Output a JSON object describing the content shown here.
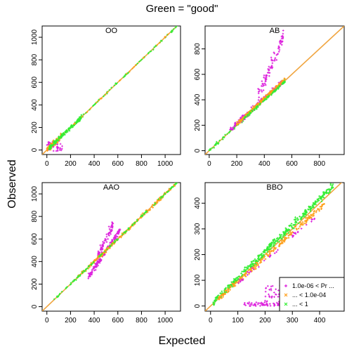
{
  "title": "Green = \"good\"",
  "xlabel": "Expected",
  "ylabel": "Observed",
  "colors": {
    "magenta": "#dd22dd",
    "orange": "#ff9f1a",
    "green": "#33ee33",
    "diagonal": "#f0a540"
  },
  "legend": {
    "placement": "bottom-right of BBO panel",
    "entries": [
      {
        "label": "1.0e-06 < Pr ...",
        "color": "#dd22dd",
        "marker": "+"
      },
      {
        "label": "... < 1.0e-04",
        "color": "#ff9f1a",
        "marker": "x"
      },
      {
        "label": "... < 1",
        "color": "#33ee33",
        "marker": "x"
      }
    ]
  },
  "chart_data": [
    {
      "type": "scatter",
      "name": "OO",
      "title": "OO",
      "xlim": [
        -40,
        1130
      ],
      "ylim": [
        -40,
        1100
      ],
      "xticks": [
        0,
        200,
        400,
        600,
        800,
        1000
      ],
      "yticks": [
        0,
        200,
        400,
        600,
        800,
        1000
      ],
      "diagonal": true,
      "clusters": [
        {
          "color": "magenta",
          "n": 60,
          "shape": "blob",
          "x": [
            0,
            130
          ],
          "y": [
            -10,
            80
          ]
        },
        {
          "color": "orange",
          "n": 90,
          "shape": "diag",
          "x": [
            0,
            120
          ],
          "noise": 25
        },
        {
          "color": "green",
          "n": 150,
          "shape": "diag",
          "x": [
            20,
            300
          ],
          "noise": 18
        },
        {
          "color": "green",
          "n": 60,
          "shape": "diag",
          "x": [
            300,
            1100
          ],
          "noise": 8
        },
        {
          "color": "orange",
          "n": 25,
          "shape": "diag",
          "x": [
            200,
            1050
          ],
          "noise": 6
        }
      ]
    },
    {
      "type": "scatter",
      "name": "AB",
      "title": "AB",
      "xlim": [
        -30,
        980
      ],
      "ylim": [
        -30,
        980
      ],
      "xticks": [
        0,
        200,
        400,
        600,
        800
      ],
      "yticks": [
        0,
        200,
        400,
        600,
        800
      ],
      "diagonal": true,
      "clusters": [
        {
          "color": "green",
          "n": 120,
          "shape": "diag",
          "x": [
            0,
            550
          ],
          "noise": 15
        },
        {
          "color": "magenta",
          "n": 180,
          "shape": "slope",
          "x": [
            150,
            540
          ],
          "slope": 1.0,
          "offset": 10,
          "noise": 20
        },
        {
          "color": "magenta",
          "n": 90,
          "shape": "slope",
          "x": [
            350,
            540
          ],
          "slope": 2.6,
          "offset": -500,
          "noise": 50
        },
        {
          "color": "orange",
          "n": 200,
          "shape": "slope",
          "x": [
            200,
            550
          ],
          "slope": 1.0,
          "offset": 10,
          "noise": 15
        },
        {
          "color": "green",
          "n": 80,
          "shape": "slope",
          "x": [
            250,
            550
          ],
          "slope": 0.98,
          "offset": 5,
          "noise": 8
        }
      ]
    },
    {
      "type": "scatter",
      "name": "AAO",
      "title": "AAO",
      "xlim": [
        -40,
        1130
      ],
      "ylim": [
        -40,
        1100
      ],
      "xticks": [
        0,
        200,
        400,
        600,
        800,
        1000
      ],
      "yticks": [
        0,
        200,
        400,
        600,
        800,
        1000
      ],
      "diagonal": true,
      "clusters": [
        {
          "color": "magenta",
          "n": 140,
          "shape": "slope",
          "x": [
            350,
            620
          ],
          "slope": 1.55,
          "offset": -280,
          "noise": 25
        },
        {
          "color": "magenta",
          "n": 70,
          "shape": "slope",
          "x": [
            430,
            560
          ],
          "slope": 2.2,
          "offset": -500,
          "noise": 40
        },
        {
          "color": "orange",
          "n": 230,
          "shape": "diag",
          "x": [
            250,
            1100
          ],
          "noise": 15
        },
        {
          "color": "green",
          "n": 120,
          "shape": "diag",
          "x": [
            50,
            1100
          ],
          "noise": 8
        }
      ]
    },
    {
      "type": "scatter",
      "name": "BBO",
      "title": "BBO",
      "xlim": [
        -20,
        490
      ],
      "ylim": [
        -20,
        480
      ],
      "xticks": [
        0,
        100,
        200,
        300,
        400
      ],
      "yticks": [
        0,
        100,
        200,
        300,
        400
      ],
      "diagonal": true,
      "clusters": [
        {
          "color": "green",
          "n": 400,
          "shape": "slope",
          "x": [
            10,
            450
          ],
          "slope": 1.03,
          "offset": 5,
          "noise": 14
        },
        {
          "color": "orange",
          "n": 220,
          "shape": "slope",
          "x": [
            30,
            420
          ],
          "slope": 0.95,
          "offset": 0,
          "noise": 10
        },
        {
          "color": "magenta",
          "n": 90,
          "shape": "blob",
          "x": [
            120,
            330
          ],
          "y": [
            0,
            15
          ]
        },
        {
          "color": "magenta",
          "n": 60,
          "shape": "blob",
          "x": [
            200,
            330
          ],
          "y": [
            15,
            90
          ]
        },
        {
          "color": "magenta",
          "n": 40,
          "shape": "slope",
          "x": [
            100,
            400
          ],
          "slope": 0.9,
          "offset": 0,
          "noise": 10
        }
      ]
    }
  ]
}
